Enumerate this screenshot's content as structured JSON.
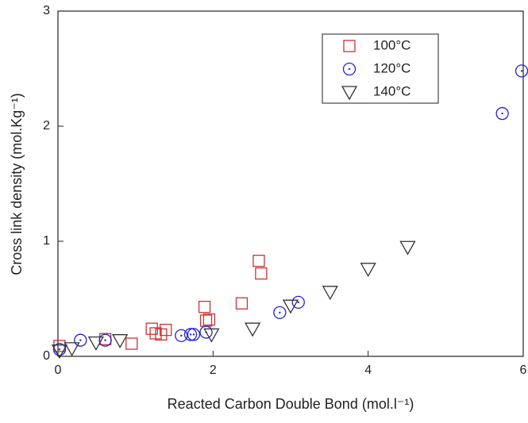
{
  "chart_data": {
    "type": "scatter",
    "x_label": "Reacted Carbon Double Bond (mol.l⁻¹)",
    "y_label": "Cross link density (mol.Kg⁻¹)",
    "xlim": [
      0,
      6
    ],
    "ylim": [
      0,
      3
    ],
    "xticks": [
      0,
      2,
      4,
      6
    ],
    "yticks": [
      0,
      1,
      2,
      3
    ],
    "legend": "upper right",
    "series": [
      {
        "name": "100°C",
        "color": "#cc3333",
        "marker": "square",
        "x": [
          0.02,
          0.61,
          0.95,
          1.21,
          1.26,
          1.33,
          1.39,
          1.89,
          1.91,
          1.95,
          2.37,
          2.59,
          2.62
        ],
        "values": [
          0.09,
          0.15,
          0.11,
          0.24,
          0.2,
          0.19,
          0.23,
          0.43,
          0.31,
          0.32,
          0.46,
          0.83,
          0.72
        ]
      },
      {
        "name": "120°C",
        "color": "#2222dd",
        "marker": "circle",
        "x": [
          0.02,
          0.29,
          0.61,
          1.59,
          1.71,
          1.75,
          1.91,
          2.86,
          3.1,
          5.73,
          5.98
        ],
        "values": [
          0.06,
          0.14,
          0.14,
          0.18,
          0.19,
          0.19,
          0.21,
          0.38,
          0.47,
          2.11,
          2.48
        ]
      },
      {
        "name": "140°C",
        "color": "#333333",
        "marker": "triangle",
        "x": [
          0.02,
          0.18,
          0.49,
          0.8,
          1.98,
          2.51,
          3.0,
          3.51,
          4.0,
          4.51
        ],
        "values": [
          0.05,
          0.07,
          0.12,
          0.14,
          0.19,
          0.24,
          0.44,
          0.56,
          0.76,
          0.95
        ]
      }
    ]
  }
}
